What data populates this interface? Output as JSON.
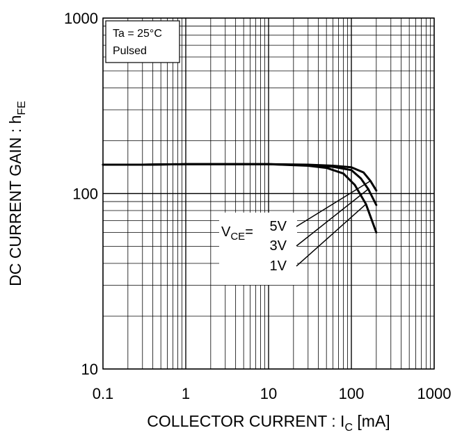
{
  "chart_data": {
    "type": "line",
    "x_scale": "log",
    "y_scale": "log",
    "xlim": [
      0.1,
      1000
    ],
    "ylim": [
      10,
      1000
    ],
    "grid": true,
    "x_ticks": [
      "0.1",
      "1",
      "10",
      "100",
      "1000"
    ],
    "y_ticks": [
      "10",
      "100",
      "1000"
    ],
    "xlabel_main": "COLLECTOR CURRENT : I",
    "xlabel_sub": "C",
    "xlabel_unit": " [mA]",
    "ylabel_main": "DC CURRENT GAIN : h",
    "ylabel_sub": "FE",
    "conditions": [
      "Ta = 25°C",
      "Pulsed"
    ],
    "legend_prefix": "V",
    "legend_prefix_sub": "CE",
    "legend_eq": "=",
    "series": [
      {
        "name": "5V",
        "x": [
          0.1,
          0.3,
          1,
          3,
          10,
          30,
          60,
          100,
          140,
          170,
          200
        ],
        "y": [
          146,
          146,
          147,
          147,
          147,
          146,
          144,
          141,
          132,
          118,
          104
        ]
      },
      {
        "name": "3V",
        "x": [
          0.1,
          0.3,
          1,
          3,
          10,
          30,
          60,
          100,
          130,
          160,
          200
        ],
        "y": [
          146,
          146,
          147,
          147,
          147,
          145,
          142,
          136,
          122,
          106,
          86
        ]
      },
      {
        "name": "1V",
        "x": [
          0.1,
          0.3,
          1,
          3,
          10,
          30,
          50,
          80,
          110,
          150,
          200
        ],
        "y": [
          146,
          146,
          147,
          147,
          147,
          144,
          140,
          130,
          112,
          87,
          60
        ]
      }
    ]
  }
}
